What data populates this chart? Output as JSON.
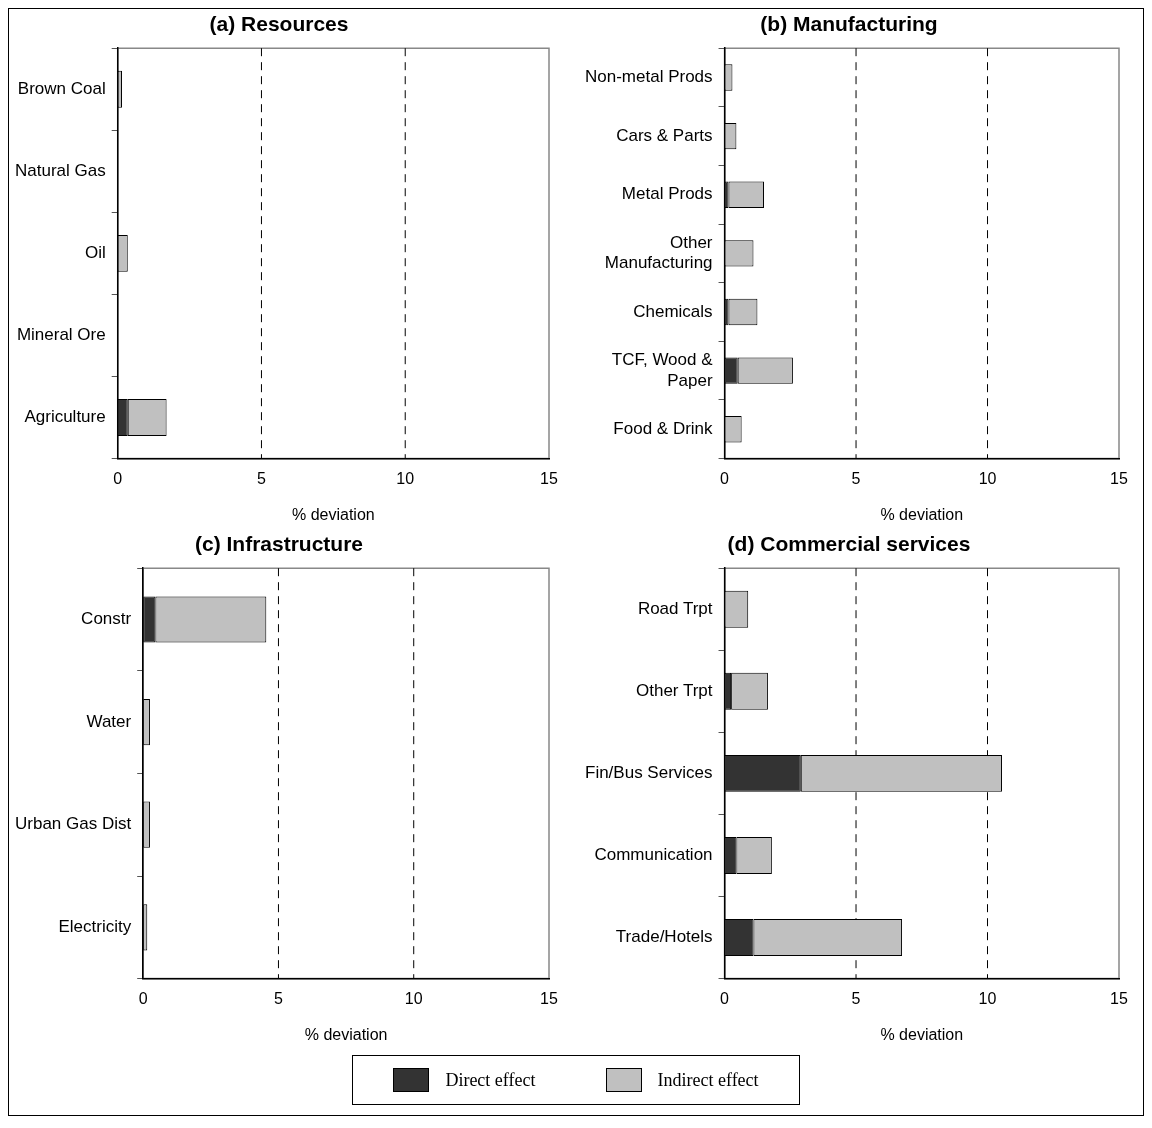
{
  "chart_data": [
    {
      "type": "bar",
      "orientation": "horizontal",
      "stacked": true,
      "title": "(a) Resources",
      "xlabel": "% deviation",
      "categories": [
        "Brown Coal",
        "Natural Gas",
        "Oil",
        "Mineral Ore",
        "Agriculture"
      ],
      "xlim": [
        0,
        15
      ],
      "xticks": [
        0,
        5,
        10,
        15
      ],
      "grid": "x",
      "legend": "bottom",
      "series": [
        {
          "name": "Direct effect",
          "color": "#333333",
          "values": [
            0,
            0,
            0,
            0,
            0.35
          ]
        },
        {
          "name": "Indirect effect",
          "color": "#c0c0c0",
          "values": [
            0.15,
            0,
            0.35,
            0,
            1.35
          ]
        }
      ]
    },
    {
      "type": "bar",
      "orientation": "horizontal",
      "stacked": true,
      "title": "(b) Manufacturing",
      "xlabel": "% deviation",
      "categories": [
        "Non-metal Prods",
        "Cars & Parts",
        "Metal Prods",
        "Other Manufacturing",
        "Chemicals",
        "TCF, Wood & Paper",
        "Food & Drink"
      ],
      "xlim": [
        0,
        15
      ],
      "xticks": [
        0,
        5,
        10,
        15
      ],
      "grid": "x",
      "series": [
        {
          "color": "#333333",
          "values": [
            0,
            0,
            0.15,
            0,
            0.15,
            0.5,
            0
          ]
        },
        {
          "color": "#c0c0c0",
          "values": [
            0.3,
            0.45,
            1.35,
            1.1,
            1.1,
            2.1,
            0.65
          ]
        }
      ]
    },
    {
      "type": "bar",
      "orientation": "horizontal",
      "stacked": true,
      "title": "(c) Infrastructure",
      "xlabel": "% deviation",
      "categories": [
        "Constr",
        "Water",
        "Urban Gas Dist",
        "Electricity"
      ],
      "xlim": [
        0,
        15
      ],
      "xticks": [
        0,
        5,
        10,
        15
      ],
      "grid": "x",
      "series": [
        {
          "color": "#333333",
          "values": [
            0.45,
            0,
            0,
            0
          ]
        },
        {
          "color": "#c0c0c0",
          "values": [
            4.1,
            0.25,
            0.25,
            0.15
          ]
        }
      ]
    },
    {
      "type": "bar",
      "orientation": "horizontal",
      "stacked": true,
      "title": "(d) Commercial services",
      "xlabel": "% deviation",
      "categories": [
        "Road Trpt",
        "Other Trpt",
        "Fin/Bus Services",
        "Communication",
        "Trade/Hotels"
      ],
      "xlim": [
        0,
        15
      ],
      "xticks": [
        0,
        5,
        10,
        15
      ],
      "grid": "x",
      "series": [
        {
          "color": "#333333",
          "values": [
            0,
            0.25,
            2.9,
            0.45,
            1.1
          ]
        },
        {
          "color": "#c0c0c0",
          "values": [
            0.9,
            1.4,
            7.65,
            1.35,
            5.65
          ]
        }
      ]
    }
  ]
}
